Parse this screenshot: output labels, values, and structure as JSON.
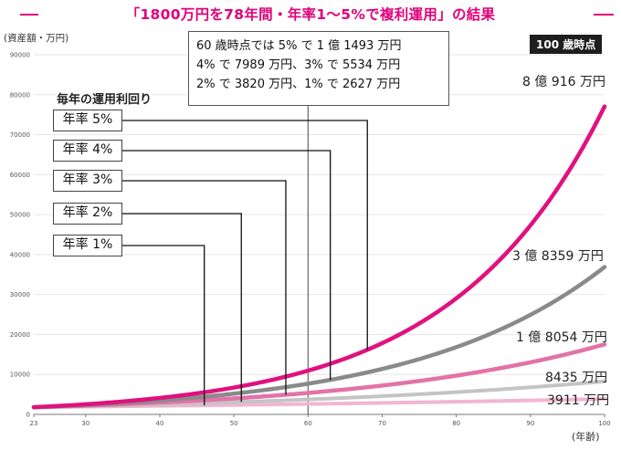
{
  "header": {
    "title": "「1800万円を78年間・年率1～5%で複利運用」の結果"
  },
  "info_box": {
    "lines": [
      "60 歳時点では 5% で 1 億 1493 万円",
      "4% で 7989 万円、3% で 5534 万円",
      "2% で 3820 万円、1% で 2627 万円"
    ]
  },
  "badge": "100 歳時点",
  "legend_title": "毎年の運用利回り",
  "chart_data": {
    "type": "line",
    "ylabel": "(資産額・万円)",
    "xlabel": "(年齢)",
    "xlim": [
      23,
      100
    ],
    "ylim": [
      0,
      90000
    ],
    "x_ticks": [
      23,
      30,
      40,
      50,
      60,
      70,
      80,
      90,
      100
    ],
    "y_ticks": [
      0,
      10000,
      20000,
      30000,
      40000,
      50000,
      60000,
      70000,
      80000,
      90000
    ],
    "principal": 1800,
    "marker_age": 60,
    "series": [
      {
        "name": "年率 5%",
        "rate": 0.05,
        "color": "#e0117f",
        "width": 4.5,
        "end_label": "8 億 916 万円",
        "callout_age": 68,
        "value_60": 11493,
        "value_100": 80916
      },
      {
        "name": "年率 4%",
        "rate": 0.04,
        "color": "#8a8a8a",
        "width": 4.5,
        "end_label": "3 億 8359 万円",
        "callout_age": 63,
        "value_60": 7989,
        "value_100": 38359
      },
      {
        "name": "年率 3%",
        "rate": 0.03,
        "color": "#e272a8",
        "width": 4.5,
        "end_label": "1 億 8054 万円",
        "callout_age": 57,
        "value_60": 5534,
        "value_100": 18054
      },
      {
        "name": "年率 2%",
        "rate": 0.02,
        "color": "#c4c4c4",
        "width": 4,
        "end_label": "8435 万円",
        "callout_age": 51,
        "value_60": 3820,
        "value_100": 8435
      },
      {
        "name": "年率 1%",
        "rate": 0.01,
        "color": "#f2b5d2",
        "width": 4,
        "end_label": "3911 万円",
        "callout_age": 46,
        "value_60": 2627,
        "value_100": 3911
      }
    ]
  }
}
